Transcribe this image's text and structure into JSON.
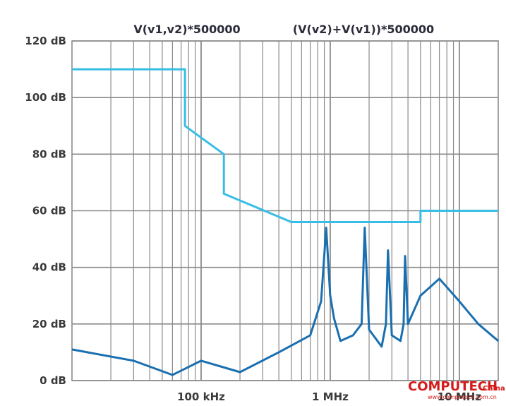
{
  "chart_data": {
    "type": "line",
    "title": "",
    "xlabel": "",
    "ylabel": "",
    "x_scale": "log",
    "xlim": [
      10000,
      20000000
    ],
    "ylim": [
      0,
      120
    ],
    "y_ticks": [
      0,
      20,
      40,
      60,
      80,
      100,
      120
    ],
    "y_tick_labels": [
      "0 dB",
      "20 dB",
      "40 dB",
      "60 dB",
      "80 dB",
      "100 dB",
      "120 dB"
    ],
    "x_ticks": [
      100000,
      1000000,
      10000000
    ],
    "x_tick_labels": [
      "100 kHz",
      "1 MHz",
      "10 MHz"
    ],
    "grid": true,
    "legend_position": "top",
    "colors": {
      "limit_line": "#38bde6",
      "spectrum": "#1a6fb0",
      "grid": "#8a8a8a",
      "watermark": "#d61a1a"
    },
    "series": [
      {
        "name": "V(v1,v2)*500000",
        "color": "#38bde6",
        "x": [
          10000,
          75000,
          75000,
          150000,
          150000,
          500000,
          500000,
          5000000,
          5000000,
          20000000
        ],
        "y": [
          110,
          110,
          90,
          80,
          66,
          56,
          56,
          56,
          60,
          60
        ]
      },
      {
        "name": "(V(v2)+V(v1))*500000",
        "color": "#1a6fb0",
        "x": [
          10000,
          30000,
          60000,
          100000,
          200000,
          400000,
          700000,
          850000,
          930000,
          1000000,
          1070000,
          1200000,
          1500000,
          1750000,
          1850000,
          2000000,
          2500000,
          2700000,
          2800000,
          3000000,
          3500000,
          3700000,
          3800000,
          4000000,
          5000000,
          7000000,
          10000000,
          14000000,
          20000000
        ],
        "y": [
          11,
          7,
          2,
          7,
          3,
          10,
          16,
          28,
          54,
          30,
          22,
          14,
          16,
          20,
          54,
          18,
          12,
          20,
          46,
          16,
          14,
          20,
          44,
          20,
          30,
          36,
          28,
          20,
          14
        ]
      }
    ]
  },
  "watermark": {
    "brand": "COMPUTECH",
    "region": "China",
    "url": "www.computech.com.cn"
  }
}
